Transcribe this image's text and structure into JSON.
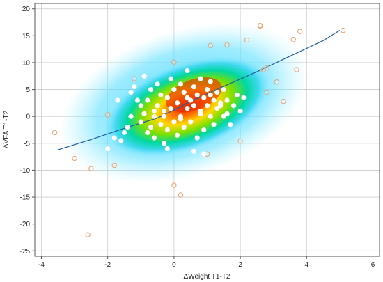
{
  "chart_data": {
    "type": "scatter",
    "xlabel": "ΔWeight T1-T2",
    "ylabel": "ΔVFA T1-T2",
    "xlim": [
      -4.2,
      6.2
    ],
    "ylim": [
      -26,
      21
    ],
    "x_ticks": [
      -4,
      -2,
      0,
      2,
      4,
      6
    ],
    "y_ticks": [
      -25,
      -20,
      -15,
      -10,
      -5,
      0,
      5,
      10,
      15,
      20
    ],
    "grid": true,
    "overlay": "density heatmap (blue to red)",
    "colors": {
      "inlier_fill": "#ffffff",
      "inlier_stroke": "#e8a070",
      "outlier_stroke": "#e8a070",
      "fit_line": "#2060a0",
      "grid": "#cccccc"
    },
    "fit_line": {
      "x": [
        -3.5,
        -2.5,
        -1.5,
        -0.5,
        0.0,
        0.5,
        1.5,
        2.5,
        3.5,
        4.5,
        5.0
      ],
      "y": [
        -6.2,
        -4.3,
        -2.2,
        -0.3,
        1.2,
        2.8,
        5.6,
        8.3,
        11.2,
        14.1,
        16.0
      ]
    },
    "outliers": {
      "x": [
        -3.6,
        -3.0,
        -2.5,
        -2.6,
        -2.0,
        -1.8,
        0.0,
        0.2,
        0.0,
        1.0,
        1.1,
        2.0,
        2.2,
        2.6,
        2.6,
        2.8,
        2.7,
        3.1,
        3.3,
        3.6,
        3.7,
        3.8,
        5.1,
        -1.2,
        2.8,
        1.6
      ],
      "y": [
        -3.0,
        -7.8,
        -9.7,
        -22.0,
        0.3,
        -9.1,
        -12.8,
        -14.6,
        10.1,
        -7.0,
        13.2,
        -4.6,
        14.2,
        16.8,
        16.9,
        9.0,
        8.7,
        6.4,
        2.8,
        14.3,
        8.7,
        15.8,
        16.0,
        7.0,
        4.5,
        13.3
      ]
    },
    "points": {
      "x": [
        -2.0,
        -1.8,
        -1.7,
        -1.5,
        -1.3,
        -1.3,
        -1.2,
        -1.1,
        -1.0,
        -0.9,
        -0.9,
        -0.8,
        -0.8,
        -0.7,
        -0.7,
        -0.6,
        -0.6,
        -0.5,
        -0.5,
        -0.4,
        -0.4,
        -0.3,
        -0.3,
        -0.2,
        -0.2,
        -0.1,
        -0.1,
        0.0,
        0.0,
        0.1,
        0.1,
        0.2,
        0.2,
        0.3,
        0.3,
        0.4,
        0.4,
        0.5,
        0.5,
        0.6,
        0.6,
        0.7,
        0.7,
        0.8,
        0.8,
        0.9,
        0.9,
        1.0,
        1.0,
        1.1,
        1.1,
        1.2,
        1.2,
        1.3,
        1.3,
        1.4,
        1.5,
        1.5,
        1.6,
        1.7,
        1.8,
        1.9,
        2.0,
        2.1,
        -1.6,
        -1.4,
        -0.2,
        0.6,
        0.9,
        1.4,
        -0.6,
        -0.3,
        0.2,
        0.8,
        1.6,
        -1.0,
        0.4,
        1.1
      ],
      "y": [
        -6.0,
        -4.0,
        3.0,
        -3.0,
        4.5,
        0.0,
        5.5,
        3.0,
        -1.0,
        0.5,
        7.5,
        -3.0,
        3.0,
        -2.0,
        5.0,
        1.0,
        -4.0,
        2.0,
        6.0,
        -1.5,
        4.0,
        0.0,
        -5.0,
        3.5,
        -2.5,
        1.5,
        7.0,
        -1.0,
        5.0,
        2.5,
        -3.5,
        0.0,
        6.0,
        -2.0,
        4.5,
        1.5,
        8.5,
        3.0,
        -1.0,
        5.5,
        2.0,
        -4.0,
        4.0,
        0.5,
        7.0,
        3.5,
        -2.5,
        2.0,
        5.0,
        0.0,
        6.5,
        3.0,
        -1.5,
        4.5,
        1.5,
        2.5,
        0.0,
        5.0,
        3.0,
        -1.5,
        2.0,
        4.0,
        1.0,
        3.5,
        -4.5,
        -2.0,
        -6.0,
        -6.5,
        -7.0,
        2.0,
        0.0,
        1.0,
        -0.5,
        1.0,
        0.5,
        2.0,
        3.5,
        4.0
      ]
    }
  }
}
